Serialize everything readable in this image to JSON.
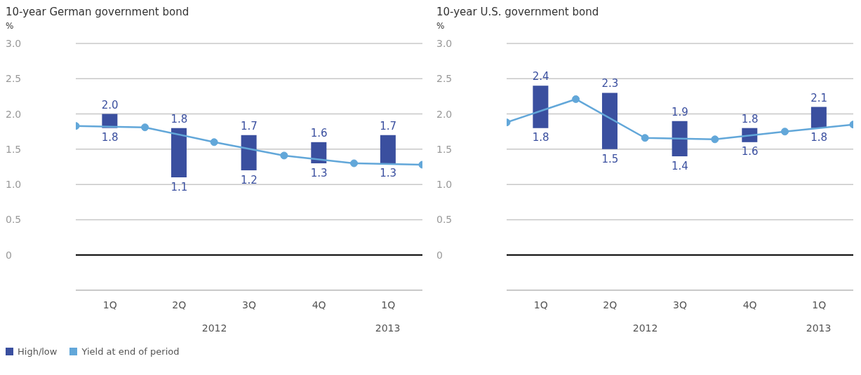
{
  "chart_data": [
    {
      "type": "bar",
      "title": "10-year German government bond",
      "ylabel": "%",
      "xlim": [
        "2011-12-31",
        "2013-03-31"
      ],
      "xticks": [
        {
          "value": "2012-02-14",
          "label": "1Q"
        },
        {
          "value": "2012-05-15",
          "label": "2Q"
        },
        {
          "value": "2012-08-15",
          "label": "3Q"
        },
        {
          "value": "2012-11-15",
          "label": "4Q"
        },
        {
          "value": "2013-02-14",
          "label": "1Q"
        }
      ],
      "ylim": [
        -0.5,
        3.0
      ],
      "yticks": [
        {
          "value": -0.5,
          "label": null
        },
        0,
        0.5,
        {
          "value": 1,
          "label": "1.0"
        },
        1.5,
        {
          "value": 2,
          "label": "2.0"
        },
        2.5,
        {
          "value": 3,
          "label": "3.0"
        }
      ],
      "grid": "y",
      "legend": "bottom",
      "ref_lines": [
        {
          "axis": "y",
          "value": 0,
          "color": "#000000"
        }
      ],
      "series": [
        {
          "type": "bar",
          "name": "High/low",
          "color": "#3a4f9f",
          "x": [
            "2012-02-14",
            "2012-05-15",
            "2012-08-15",
            "2012-11-15",
            "2013-02-14"
          ],
          "base": [
            1.8,
            1.1,
            1.2,
            1.3,
            1.3
          ],
          "values": [
            0.2,
            0.7,
            0.5,
            0.3,
            0.4
          ]
        },
        {
          "type": "line",
          "name": "Yield at end of period",
          "color": "#62a7d9",
          "marker": "circle",
          "x": [
            "2011-12-31",
            "2012-03-31",
            "2012-06-30",
            "2012-09-30",
            "2012-12-31",
            "2013-03-31"
          ],
          "values": [
            1.83,
            1.81,
            1.6,
            1.41,
            1.3,
            1.28
          ]
        }
      ],
      "annotations": [
        {
          "text": "2.0",
          "x": "2012-02-14",
          "y": 2.0
        },
        {
          "text": "1.8",
          "x": "2012-02-14",
          "y": 1.8
        },
        {
          "text": "1.8",
          "x": "2012-05-15",
          "y": 1.8
        },
        {
          "text": "1.1",
          "x": "2012-05-15",
          "y": 1.1
        },
        {
          "text": "1.7",
          "x": "2012-08-15",
          "y": 1.7
        },
        {
          "text": "1.2",
          "x": "2012-08-15",
          "y": 1.2
        },
        {
          "text": "1.6",
          "x": "2012-11-15",
          "y": 1.6
        },
        {
          "text": "1.3",
          "x": "2012-11-15",
          "y": 1.3
        },
        {
          "text": "1.7",
          "x": "2013-02-14",
          "y": 1.7
        },
        {
          "text": "1.3",
          "x": "2013-02-14",
          "y": 1.3
        },
        "2012",
        "2013"
      ]
    },
    {
      "type": "bar",
      "title": "10-year U.S. government bond",
      "ylabel": "%",
      "xlim": [
        "2011-12-31",
        "2013-03-31"
      ],
      "xticks": [
        {
          "value": "2012-02-14",
          "label": "1Q"
        },
        {
          "value": "2012-05-15",
          "label": "2Q"
        },
        {
          "value": "2012-08-15",
          "label": "3Q"
        },
        {
          "value": "2012-11-15",
          "label": "4Q"
        },
        {
          "value": "2013-02-14",
          "label": "1Q"
        }
      ],
      "ylim": [
        -0.5,
        3.0
      ],
      "yticks": [
        {
          "value": -0.5,
          "label": null
        },
        0,
        0.5,
        {
          "value": 1,
          "label": "1.0"
        },
        1.5,
        {
          "value": 2,
          "label": "2.0"
        },
        2.5,
        {
          "value": 3,
          "label": "3.0"
        }
      ],
      "grid": "y",
      "ref_lines": [
        {
          "axis": "y",
          "value": 0,
          "color": "#000000"
        }
      ],
      "series": [
        {
          "type": "bar",
          "color": "#3a4f9f",
          "x": [
            "2012-02-14",
            "2012-05-15",
            "2012-08-15",
            "2012-11-15",
            "2013-02-14"
          ],
          "base": [
            1.8,
            1.5,
            1.4,
            1.6,
            1.8
          ],
          "values": [
            0.6,
            0.8,
            0.5,
            0.2,
            0.3
          ]
        },
        {
          "type": "line",
          "color": "#62a7d9",
          "marker": "circle",
          "x": [
            "2011-12-31",
            "2012-03-31",
            "2012-06-30",
            "2012-09-30",
            "2012-12-31",
            "2013-03-31"
          ],
          "values": [
            1.88,
            2.21,
            1.66,
            1.64,
            1.75,
            1.85
          ]
        }
      ],
      "annotations": [
        {
          "text": "2.4",
          "x": "2012-02-14",
          "y": 2.4
        },
        {
          "text": "1.8",
          "x": "2012-02-14",
          "y": 1.8
        },
        {
          "text": "2.3",
          "x": "2012-05-15",
          "y": 2.3
        },
        {
          "text": "1.5",
          "x": "2012-05-15",
          "y": 1.5
        },
        {
          "text": "1.9",
          "x": "2012-08-15",
          "y": 1.9
        },
        {
          "text": "1.4",
          "x": "2012-08-15",
          "y": 1.4
        },
        {
          "text": "1.8",
          "x": "2012-11-15",
          "y": 1.8
        },
        {
          "text": "1.6",
          "x": "2012-11-15",
          "y": 1.6
        },
        {
          "text": "2.1",
          "x": "2013-02-14",
          "y": 2.1
        },
        {
          "text": "1.8",
          "x": "2013-02-14",
          "y": 1.8
        },
        "2012",
        "2013"
      ]
    }
  ]
}
